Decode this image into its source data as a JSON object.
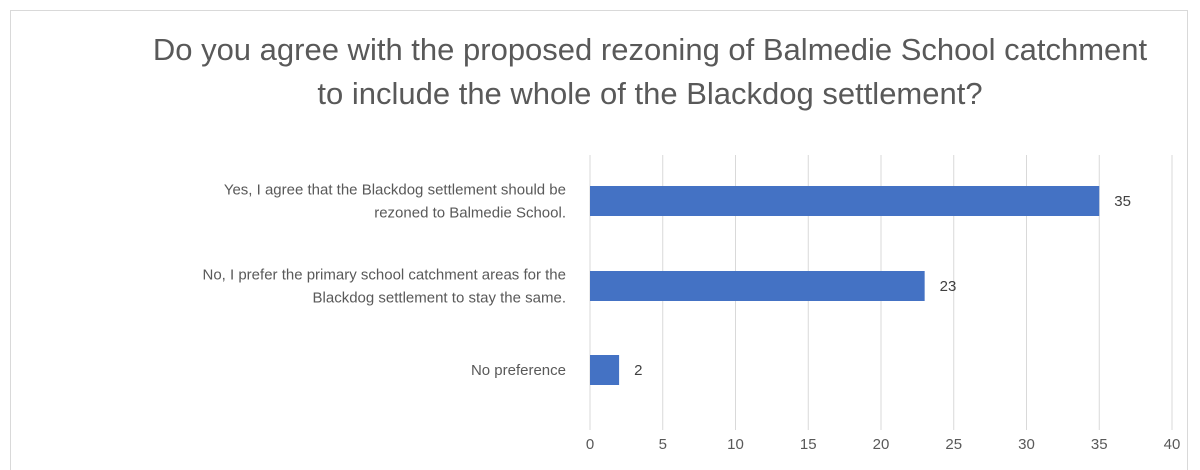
{
  "chart_data": {
    "type": "bar",
    "orientation": "horizontal",
    "title": "Do you agree with the proposed rezoning of Balmedie School catchment to include the whole of the Blackdog settlement?",
    "categories": [
      [
        "Yes, I agree that the Blackdog settlement should be",
        "rezoned to Balmedie School."
      ],
      [
        "No, I prefer the primary school catchment areas for the",
        "Blackdog settlement to stay the same."
      ],
      [
        "No preference"
      ]
    ],
    "values": [
      35,
      23,
      2
    ],
    "data_labels": [
      "35",
      "23",
      "2"
    ],
    "xlim": [
      0,
      40
    ],
    "ticks": [
      0,
      5,
      10,
      15,
      20,
      25,
      30,
      35,
      40
    ],
    "grid": true,
    "legend": "none",
    "bar_color": "#4472c4",
    "grid_color": "#d9d9d9"
  }
}
